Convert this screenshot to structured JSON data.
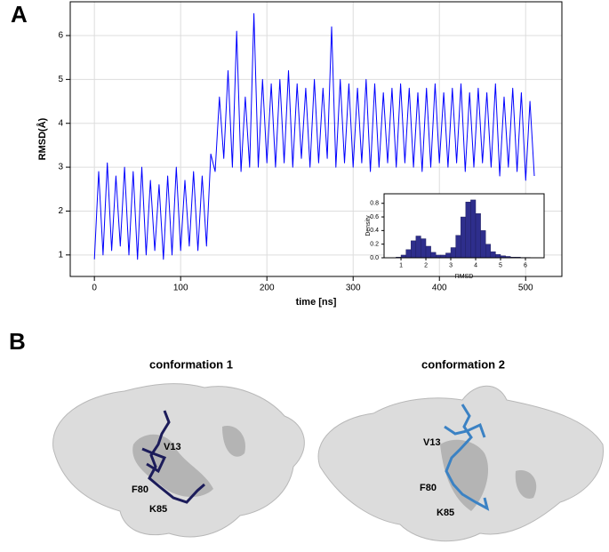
{
  "panel_labels": [
    "A",
    "B"
  ],
  "chart_data": [
    {
      "type": "line",
      "xlabel": "time [ns]",
      "ylabel": "RMSD(Å)",
      "color": "#0000ff",
      "grid": true,
      "x": [
        0,
        5,
        10,
        15,
        20,
        25,
        30,
        35,
        40,
        45,
        50,
        55,
        60,
        65,
        70,
        75,
        80,
        85,
        90,
        95,
        100,
        105,
        110,
        115,
        120,
        125,
        130,
        135,
        140,
        145,
        150,
        155,
        160,
        165,
        170,
        175,
        180,
        185,
        190,
        195,
        200,
        205,
        210,
        215,
        220,
        225,
        230,
        235,
        240,
        245,
        250,
        255,
        260,
        265,
        270,
        275,
        280,
        285,
        290,
        295,
        300,
        305,
        310,
        315,
        320,
        325,
        330,
        335,
        340,
        345,
        350,
        355,
        360,
        365,
        370,
        375,
        380,
        385,
        390,
        395,
        400,
        405,
        410,
        415,
        420,
        425,
        430,
        435,
        440,
        445,
        450,
        455,
        460,
        465,
        470,
        475,
        480,
        485,
        490,
        495,
        500,
        505,
        510
      ],
      "values": [
        0.9,
        2.9,
        1.0,
        3.1,
        1.1,
        2.8,
        1.2,
        3.0,
        1.0,
        2.9,
        0.9,
        3.0,
        1.0,
        2.7,
        1.1,
        2.6,
        0.9,
        2.8,
        1.0,
        3.0,
        1.1,
        2.7,
        1.2,
        2.9,
        1.1,
        2.8,
        1.2,
        3.3,
        2.9,
        4.6,
        3.2,
        5.2,
        3.0,
        6.1,
        2.9,
        4.6,
        3.0,
        6.5,
        3.0,
        5.0,
        3.1,
        4.9,
        3.0,
        5.0,
        3.1,
        5.2,
        3.0,
        4.9,
        3.2,
        4.8,
        3.0,
        5.0,
        3.1,
        4.8,
        3.2,
        6.2,
        3.0,
        5.0,
        3.1,
        4.9,
        3.0,
        4.8,
        3.1,
        5.0,
        2.9,
        4.9,
        3.0,
        4.7,
        3.1,
        4.8,
        3.0,
        4.9,
        3.1,
        4.8,
        3.0,
        4.7,
        2.9,
        4.8,
        3.0,
        4.9,
        3.1,
        4.7,
        3.0,
        4.8,
        3.1,
        4.9,
        2.9,
        4.7,
        3.0,
        4.8,
        3.1,
        4.7,
        3.0,
        4.9,
        2.8,
        4.6,
        3.0,
        4.8,
        2.9,
        4.7,
        2.7,
        4.5,
        2.8
      ],
      "xlim": [
        -28,
        542
      ],
      "ylim": [
        0.51,
        6.77
      ],
      "xticks": [
        0,
        100,
        200,
        300,
        400,
        500
      ],
      "yticks": [
        1,
        2,
        3,
        4,
        5,
        6
      ]
    },
    {
      "type": "histogram",
      "xlabel": "RMSD",
      "ylabel": "Density",
      "color": "#2e2e8c",
      "grid": false,
      "bins": [
        0.8,
        1.0,
        1.2,
        1.4,
        1.6,
        1.8,
        2.0,
        2.2,
        2.4,
        2.6,
        2.8,
        3.0,
        3.2,
        3.4,
        3.6,
        3.8,
        4.0,
        4.2,
        4.4,
        4.6,
        4.8,
        5.0,
        5.2,
        5.4,
        5.6,
        5.8,
        6.0,
        6.2,
        6.4
      ],
      "values": [
        0.01,
        0.04,
        0.12,
        0.25,
        0.32,
        0.28,
        0.17,
        0.08,
        0.04,
        0.04,
        0.07,
        0.15,
        0.33,
        0.6,
        0.82,
        0.85,
        0.65,
        0.4,
        0.2,
        0.09,
        0.05,
        0.03,
        0.02,
        0.01,
        0.01,
        0.005,
        0.005,
        0.003
      ],
      "xlim": [
        0.32,
        6.75
      ],
      "ylim": [
        0,
        0.94
      ],
      "xticks": [
        1,
        2,
        3,
        4,
        5,
        6
      ],
      "yticks": [
        {
          "value": 0,
          "label": "0.0"
        },
        0.2,
        0.4,
        0.6,
        0.8
      ]
    }
  ],
  "structures": [
    {
      "title": "conformation 1",
      "residues": [
        "V13",
        "F80",
        "K85"
      ]
    },
    {
      "title": "conformation 2",
      "residues": [
        "V13",
        "F80",
        "K85"
      ]
    }
  ]
}
